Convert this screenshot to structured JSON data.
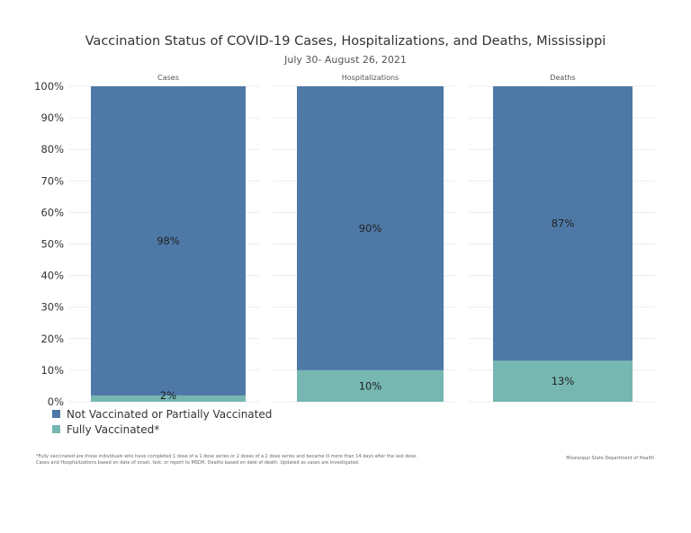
{
  "title": "Vaccination Status of COVID-19 Cases, Hospitalizations, and Deaths, Mississippi",
  "subtitle": "July 30- August 26, 2021",
  "legend": {
    "items": [
      {
        "label": "Not Vaccinated or Partially Vaccinated",
        "color": "#4e79a7"
      },
      {
        "label": "Fully Vaccinated*",
        "color": "#76b7b2"
      }
    ]
  },
  "footnote": {
    "line1": "*Fully vaccinated are those individuals who have completed 1 dose of a 1 dose series or 2 doses of a 2 dose series and became ill more than 14 days after the last dose.",
    "line2": "Cases and Hospitalizations based on date of onset, test, or report to MSDH. Deaths based on date of death. Updated as cases are investigated."
  },
  "source": "Mississippi State Department of Health",
  "chart_data": {
    "type": "bar",
    "stacked": true,
    "normalized": true,
    "categories": [
      "Cases",
      "Hospitalizations",
      "Deaths"
    ],
    "series": [
      {
        "name": "Fully Vaccinated*",
        "values": [
          2,
          10,
          13
        ],
        "labels": [
          "2%",
          "10%",
          "13%"
        ],
        "color": "#76b7b2"
      },
      {
        "name": "Not Vaccinated or Partially Vaccinated",
        "values": [
          98,
          90,
          87
        ],
        "labels": [
          "98%",
          "90%",
          "87%"
        ],
        "color": "#4e79a7"
      }
    ],
    "ylim": [
      0,
      100
    ],
    "yticks": [
      0,
      10,
      20,
      30,
      40,
      50,
      60,
      70,
      80,
      90,
      100
    ],
    "ytick_labels": [
      "0%",
      "10%",
      "20%",
      "30%",
      "40%",
      "50%",
      "60%",
      "70%",
      "80%",
      "90%",
      "100%"
    ],
    "grid": true,
    "legend_position": "bottom-left"
  }
}
